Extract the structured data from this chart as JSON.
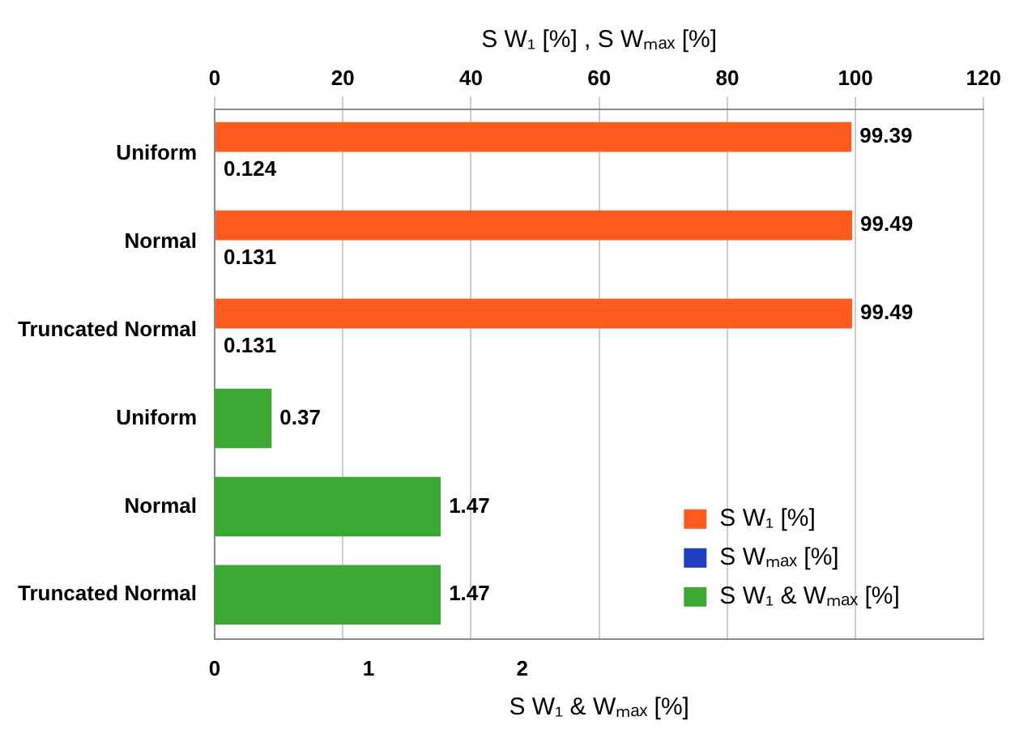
{
  "chart_data": {
    "type": "bar",
    "orientation": "horizontal",
    "categories": [
      "Uniform",
      "Normal",
      "Truncated Normal",
      "Uniform",
      "Normal",
      "Truncated Normal"
    ],
    "series": [
      {
        "name": "S W₁ [%]",
        "color": "#ff5a1f",
        "axis": "x2",
        "values": [
          99.39,
          99.49,
          99.49,
          null,
          null,
          null
        ]
      },
      {
        "name": "S Wₘₐₓ [%]",
        "color": "#1f3fbf",
        "axis": "x2",
        "values": [
          0.124,
          0.131,
          0.131,
          null,
          null,
          null
        ]
      },
      {
        "name": "S W₁ & Wₘₐₓ [%]",
        "color": "#3aa832",
        "values": [
          null,
          null,
          null,
          0.37,
          1.47,
          1.47
        ]
      }
    ],
    "x2label": "S W₁ [%] , S Wₘₐₓ [%]",
    "x2lim": [
      0,
      120
    ],
    "x2ticks": [
      0,
      20,
      40,
      60,
      80,
      100,
      120
    ],
    "xlabel": "S W₁ & Wₘₐₓ [%]",
    "xlim": [
      0,
      5
    ],
    "xticks": [
      0,
      1,
      2
    ],
    "grid": "x",
    "legend": "bottom right",
    "data_labels": true
  }
}
